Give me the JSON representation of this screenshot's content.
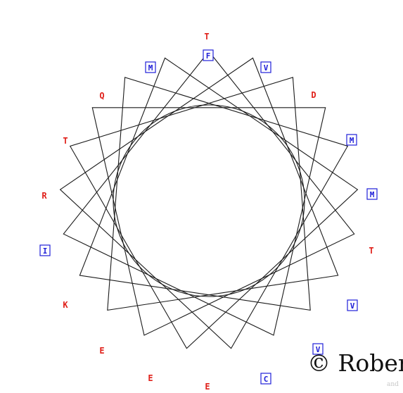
{
  "diagram": {
    "title": "21-pointed star polygon with letter labels",
    "stroke_color": "#1a1a1a",
    "red_color": "#e0201a",
    "blue_color": "#2020d8",
    "labels": [
      {
        "text": "T",
        "style": "red"
      },
      {
        "text": "V",
        "style": "blue"
      },
      {
        "text": "D",
        "style": "red"
      },
      {
        "text": "M",
        "style": "blue"
      },
      {
        "text": "M",
        "style": "blue"
      },
      {
        "text": "T",
        "style": "red"
      },
      {
        "text": "V",
        "style": "blue"
      },
      {
        "text": "V",
        "style": "blue"
      },
      {
        "text": "C",
        "style": "blue"
      },
      {
        "text": "E",
        "style": "red"
      },
      {
        "text": "E",
        "style": "red"
      },
      {
        "text": "E",
        "style": "red"
      },
      {
        "text": "K",
        "style": "red"
      },
      {
        "text": "I",
        "style": "blue"
      },
      {
        "text": "R",
        "style": "red"
      },
      {
        "text": "T",
        "style": "red"
      },
      {
        "text": "Q",
        "style": "red"
      },
      {
        "text": "M",
        "style": "blue"
      },
      {
        "text": "F",
        "style": "blue"
      }
    ]
  },
  "copyright": {
    "text": "© Rober",
    "subtext": "and"
  }
}
